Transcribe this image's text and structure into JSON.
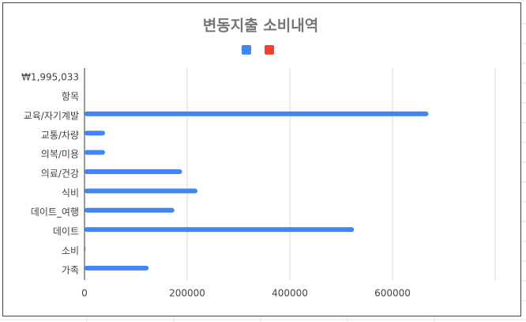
{
  "chart_data": {
    "type": "bar",
    "orientation": "horizontal",
    "title": "변동지출 소비내역",
    "categories": [
      "₩1,995,033",
      "항목",
      "교육/자기계발",
      "교통/차량",
      "의복/미용",
      "의료/건강",
      "식비",
      "데이트_여행",
      "데이트",
      "소비",
      "가족"
    ],
    "series": [
      {
        "color": "#4285f4",
        "values": [
          null,
          null,
          670000,
          40000,
          40000,
          190000,
          220000,
          175000,
          525000,
          2000,
          125000
        ]
      },
      {
        "color": "#ea4335",
        "values": [
          null,
          null,
          null,
          null,
          null,
          null,
          null,
          null,
          null,
          null,
          null
        ]
      }
    ],
    "xlim": [
      0,
      800000
    ],
    "xticks": [
      0,
      200000,
      400000,
      600000
    ],
    "grid": true
  }
}
